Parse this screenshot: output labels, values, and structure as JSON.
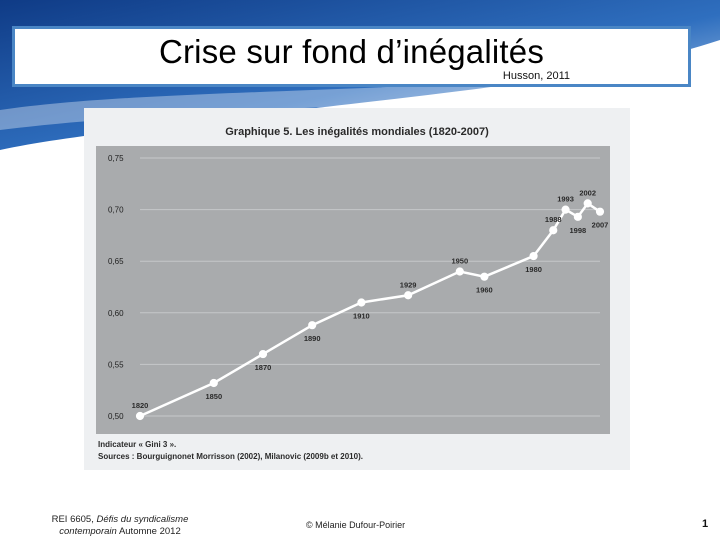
{
  "slide": {
    "title": "Crise sur fond d’inégalités",
    "subtitle": "Husson, 2011",
    "footer_course": "REI 6605,",
    "footer_course_italic": "Défis du syndicalisme contemporain",
    "footer_term": "Automne 2012",
    "footer_author": "© Mélanie Dufour-Poirier",
    "page_number": "1",
    "colors": {
      "title_border": "#4a86c5",
      "background_accent": "#1d4f9c",
      "line": "#ffffff",
      "plot_bg": "#a9abad"
    }
  },
  "figure": {
    "heading": "Graphique 5. Les inégalités mondiales (1820-2007)",
    "note_indicator": "Indicateur « Gini 3 ».",
    "note_sources": "Sources : Bourguignonet Morrisson (2002), Milanovic (2009b et 2010)."
  },
  "chart_data": {
    "type": "line",
    "title": "Graphique 5. Les inégalités mondiales (1820-2007)",
    "xlabel": "",
    "ylabel": "",
    "ylim": [
      0.5,
      0.75
    ],
    "yticks": [
      "0,75",
      "0,70",
      "0,65",
      "0,60",
      "0,55",
      "0,50"
    ],
    "ytick_values": [
      0.75,
      0.7,
      0.65,
      0.6,
      0.55,
      0.5
    ],
    "grid": true,
    "legend": "none",
    "points": [
      {
        "x": 1820,
        "y": 0.5,
        "label": "1820",
        "label_pos": "above"
      },
      {
        "x": 1850,
        "y": 0.532,
        "label": "1850",
        "label_pos": "below"
      },
      {
        "x": 1870,
        "y": 0.56,
        "label": "1870",
        "label_pos": "below"
      },
      {
        "x": 1890,
        "y": 0.588,
        "label": "1890",
        "label_pos": "below"
      },
      {
        "x": 1910,
        "y": 0.61,
        "label": "1910",
        "label_pos": "below"
      },
      {
        "x": 1929,
        "y": 0.617,
        "label": "1929",
        "label_pos": "above"
      },
      {
        "x": 1950,
        "y": 0.64,
        "label": "1950",
        "label_pos": "above"
      },
      {
        "x": 1960,
        "y": 0.635,
        "label": "1960",
        "label_pos": "below"
      },
      {
        "x": 1980,
        "y": 0.655,
        "label": "1980",
        "label_pos": "below"
      },
      {
        "x": 1988,
        "y": 0.68,
        "label": "1988",
        "label_pos": "above"
      },
      {
        "x": 1993,
        "y": 0.7,
        "label": "1993",
        "label_pos": "above"
      },
      {
        "x": 1998,
        "y": 0.693,
        "label": "1998",
        "label_pos": "below"
      },
      {
        "x": 2002,
        "y": 0.706,
        "label": "2002",
        "label_pos": "above"
      },
      {
        "x": 2007,
        "y": 0.698,
        "label": "2007",
        "label_pos": "below"
      }
    ]
  }
}
